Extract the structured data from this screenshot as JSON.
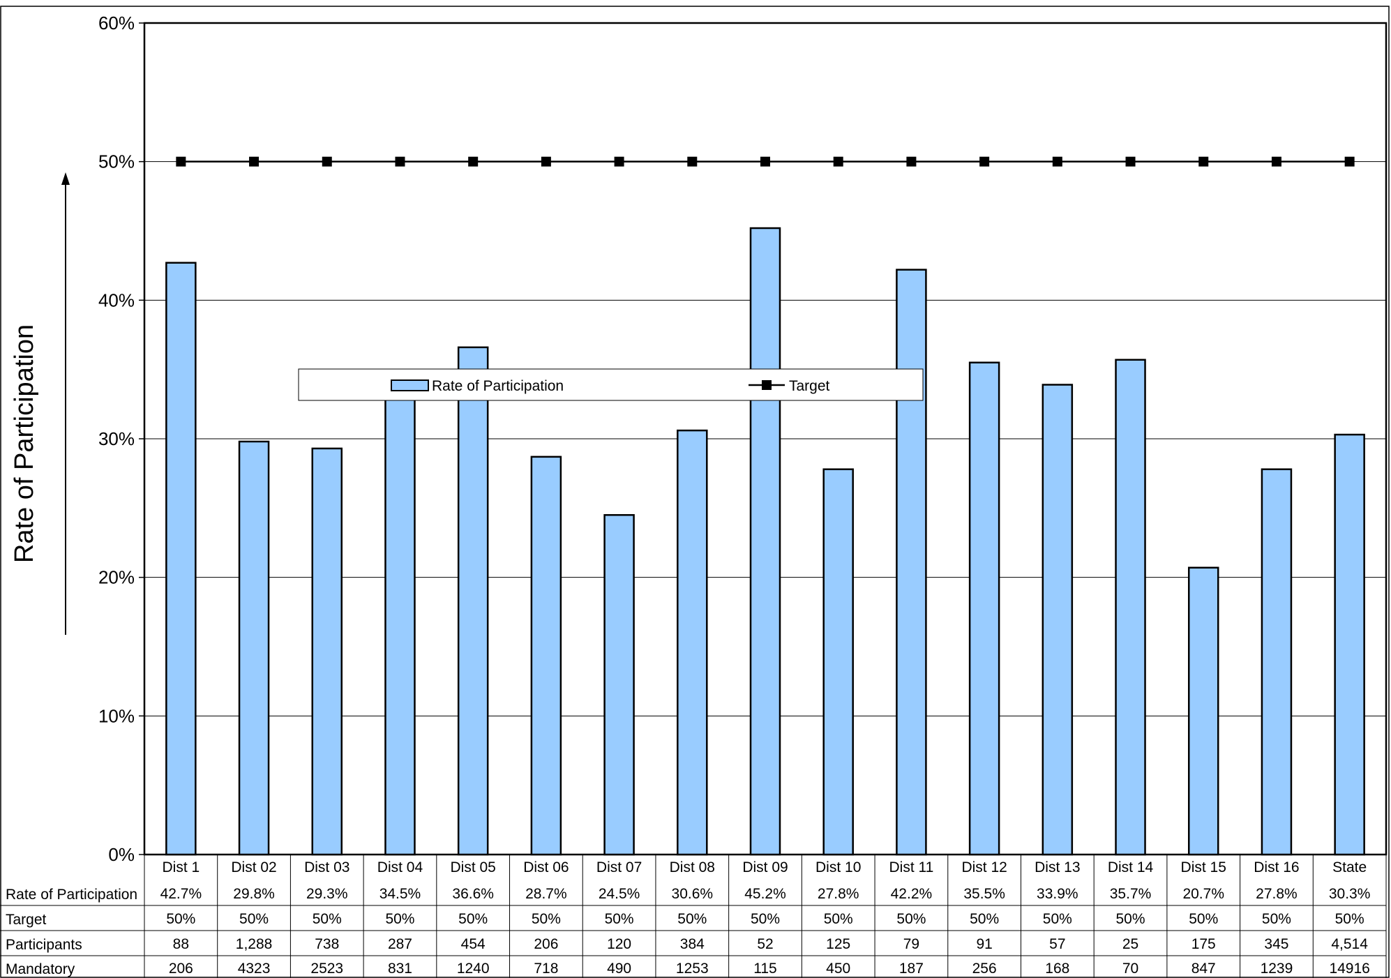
{
  "chart_data": {
    "type": "bar",
    "categories": [
      "Dist 1",
      "Dist 02",
      "Dist 03",
      "Dist 04",
      "Dist 05",
      "Dist 06",
      "Dist 07",
      "Dist 08",
      "Dist 09",
      "Dist 10",
      "Dist 11",
      "Dist 12",
      "Dist 13",
      "Dist 14",
      "Dist 15",
      "Dist 16",
      "State"
    ],
    "series": [
      {
        "name": "Rate of Participation",
        "type": "bar",
        "color": "#99ccff",
        "values": [
          42.7,
          29.8,
          29.3,
          34.5,
          36.6,
          28.7,
          24.5,
          30.6,
          45.2,
          27.8,
          42.2,
          35.5,
          33.9,
          35.7,
          20.7,
          27.8,
          30.3
        ]
      },
      {
        "name": "Target",
        "type": "line",
        "color": "#000000",
        "marker": "square",
        "values": [
          50,
          50,
          50,
          50,
          50,
          50,
          50,
          50,
          50,
          50,
          50,
          50,
          50,
          50,
          50,
          50,
          50
        ]
      }
    ],
    "ylabel": "Rate of Participation",
    "ylim": [
      0,
      60
    ],
    "yticks": [
      "0%",
      "10%",
      "20%",
      "30%",
      "40%",
      "50%",
      "60%"
    ],
    "grid": true,
    "legend_position": "middle",
    "data_table": {
      "rows": [
        {
          "label": "Rate of Participation",
          "values": [
            "42.7%",
            "29.8%",
            "29.3%",
            "34.5%",
            "36.6%",
            "28.7%",
            "24.5%",
            "30.6%",
            "45.2%",
            "27.8%",
            "42.2%",
            "35.5%",
            "33.9%",
            "35.7%",
            "20.7%",
            "27.8%",
            "30.3%"
          ]
        },
        {
          "label": "Target",
          "values": [
            "50%",
            "50%",
            "50%",
            "50%",
            "50%",
            "50%",
            "50%",
            "50%",
            "50%",
            "50%",
            "50%",
            "50%",
            "50%",
            "50%",
            "50%",
            "50%",
            "50%"
          ]
        },
        {
          "label": "Participants",
          "values": [
            "88",
            "1,288",
            "738",
            "287",
            "454",
            "206",
            "120",
            "384",
            "52",
            "125",
            "79",
            "91",
            "57",
            "25",
            "175",
            "345",
            "4,514"
          ]
        },
        {
          "label": "Mandatory",
          "values": [
            "206",
            "4323",
            "2523",
            "831",
            "1240",
            "718",
            "490",
            "1253",
            "115",
            "450",
            "187",
            "256",
            "168",
            "70",
            "847",
            "1239",
            "14916"
          ]
        }
      ]
    }
  }
}
